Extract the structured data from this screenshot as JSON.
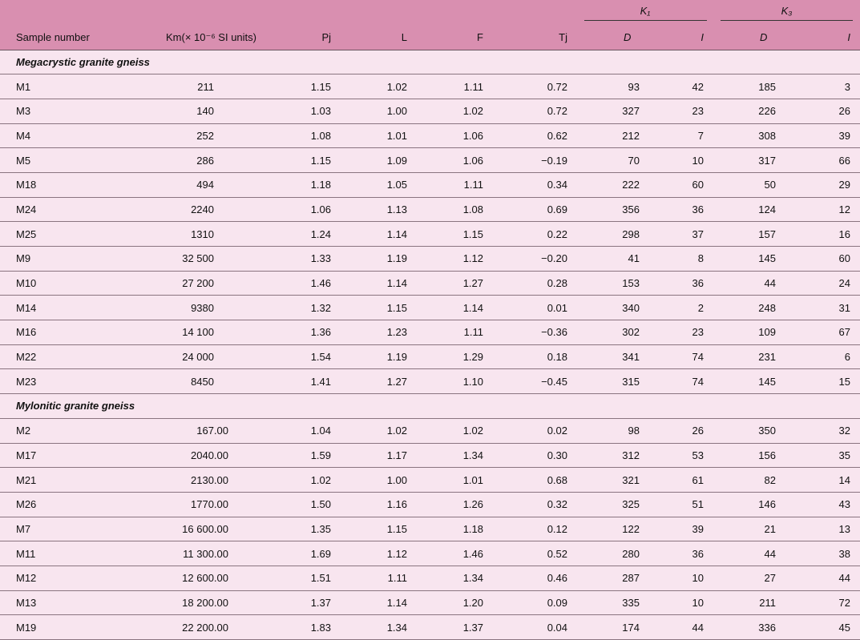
{
  "table": {
    "header": {
      "columns": [
        "Sample number",
        "Km(× 10⁻⁶ SI units)",
        "Pj",
        "L",
        "F",
        "Tj"
      ],
      "groups": [
        {
          "label": "K₁",
          "sub": [
            "D",
            "I"
          ]
        },
        {
          "label": "K₃",
          "sub": [
            "D",
            "I"
          ]
        }
      ]
    },
    "sections": [
      {
        "title": "Megacrystic granite gneiss",
        "rows": [
          [
            "M1",
            "211",
            "1.15",
            "1.02",
            "1.11",
            "0.72",
            "93",
            "42",
            "185",
            "3"
          ],
          [
            "M3",
            "140",
            "1.03",
            "1.00",
            "1.02",
            "0.72",
            "327",
            "23",
            "226",
            "26"
          ],
          [
            "M4",
            "252",
            "1.08",
            "1.01",
            "1.06",
            "0.62",
            "212",
            "7",
            "308",
            "39"
          ],
          [
            "M5",
            "286",
            "1.15",
            "1.09",
            "1.06",
            "−0.19",
            "70",
            "10",
            "317",
            "66"
          ],
          [
            "M18",
            "494",
            "1.18",
            "1.05",
            "1.11",
            "0.34",
            "222",
            "60",
            "50",
            "29"
          ],
          [
            "M24",
            "2240",
            "1.06",
            "1.13",
            "1.08",
            "0.69",
            "356",
            "36",
            "124",
            "12"
          ],
          [
            "M25",
            "1310",
            "1.24",
            "1.14",
            "1.15",
            "0.22",
            "298",
            "37",
            "157",
            "16"
          ],
          [
            "M9",
            "32 500",
            "1.33",
            "1.19",
            "1.12",
            "−0.20",
            "41",
            "8",
            "145",
            "60"
          ],
          [
            "M10",
            "27 200",
            "1.46",
            "1.14",
            "1.27",
            "0.28",
            "153",
            "36",
            "44",
            "24"
          ],
          [
            "M14",
            "9380",
            "1.32",
            "1.15",
            "1.14",
            "0.01",
            "340",
            "2",
            "248",
            "31"
          ],
          [
            "M16",
            "14 100",
            "1.36",
            "1.23",
            "1.11",
            "−0.36",
            "302",
            "23",
            "109",
            "67"
          ],
          [
            "M22",
            "24 000",
            "1.54",
            "1.19",
            "1.29",
            "0.18",
            "341",
            "74",
            "231",
            "6"
          ],
          [
            "M23",
            "8450",
            "1.41",
            "1.27",
            "1.10",
            "−0.45",
            "315",
            "74",
            "145",
            "15"
          ]
        ]
      },
      {
        "title": "Mylonitic granite gneiss",
        "rows": [
          [
            "M2",
            "167.00",
            "1.04",
            "1.02",
            "1.02",
            "0.02",
            "98",
            "26",
            "350",
            "32"
          ],
          [
            "M17",
            "2040.00",
            "1.59",
            "1.17",
            "1.34",
            "0.30",
            "312",
            "53",
            "156",
            "35"
          ],
          [
            "M21",
            "2130.00",
            "1.02",
            "1.00",
            "1.01",
            "0.68",
            "321",
            "61",
            "82",
            "14"
          ],
          [
            "M26",
            "1770.00",
            "1.50",
            "1.16",
            "1.26",
            "0.32",
            "325",
            "51",
            "146",
            "43"
          ],
          [
            "M7",
            "16 600.00",
            "1.35",
            "1.15",
            "1.18",
            "0.12",
            "122",
            "39",
            "21",
            "13"
          ],
          [
            "M11",
            "11 300.00",
            "1.69",
            "1.12",
            "1.46",
            "0.52",
            "280",
            "36",
            "44",
            "38"
          ],
          [
            "M12",
            "12 600.00",
            "1.51",
            "1.11",
            "1.34",
            "0.46",
            "287",
            "10",
            "27",
            "44"
          ],
          [
            "M13",
            "18 200.00",
            "1.37",
            "1.14",
            "1.20",
            "0.09",
            "335",
            "10",
            "211",
            "72"
          ],
          [
            "M19",
            "22 200.00",
            "1.83",
            "1.34",
            "1.37",
            "0.04",
            "174",
            "44",
            "336",
            "45"
          ]
        ]
      }
    ]
  }
}
